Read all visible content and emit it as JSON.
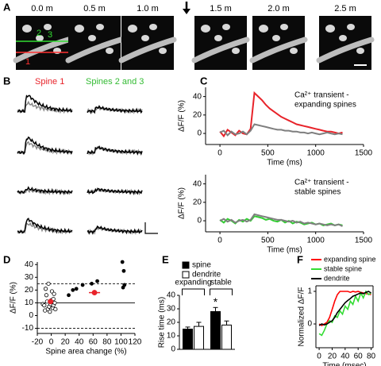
{
  "panel_labels": [
    "A",
    "B",
    "C",
    "D",
    "E",
    "F"
  ],
  "panel_a": {
    "times": [
      "0.0 m",
      "0.5 m",
      "1.0 m",
      "1.5 m",
      "2.0 m",
      "2.5 m"
    ],
    "spine_labels": [
      "1",
      "2",
      "3"
    ]
  },
  "panel_b": {
    "headers": [
      "Spine 1",
      "Spines 2 and 3"
    ]
  },
  "chart_data": [
    {
      "type": "line",
      "annotation": [
        "Ca²⁺ transient -",
        "expanding spines"
      ],
      "xlabel": "Time (ms)",
      "ylabel": "ΔF/F (%)",
      "x": [
        0,
        40,
        80,
        120,
        160,
        200,
        240,
        280,
        320,
        360,
        400,
        440,
        480,
        520,
        560,
        600,
        640,
        680,
        720,
        760,
        800,
        840,
        880,
        920,
        960,
        1000,
        1040,
        1080,
        1120,
        1160,
        1200,
        1240,
        1280
      ],
      "series": [
        {
          "color": "#e8232a",
          "values": [
            2,
            -3,
            4,
            1,
            -2,
            3,
            0,
            -1,
            5,
            44,
            40,
            36,
            31,
            27,
            24,
            21,
            18,
            16,
            14,
            12,
            10,
            9,
            8,
            7,
            6,
            5,
            4,
            3,
            2,
            2,
            1,
            0,
            1
          ]
        },
        {
          "color": "#7f7f7f",
          "values": [
            1,
            3,
            -2,
            2,
            -1,
            0,
            2,
            -1,
            3,
            10,
            9,
            8,
            7,
            6,
            5,
            4,
            4,
            3,
            3,
            2,
            2,
            1,
            1,
            0,
            1,
            0,
            -1,
            0,
            1,
            0,
            -1,
            0,
            -1
          ]
        }
      ],
      "xlim": [
        -150,
        1500
      ],
      "xticks": [
        0,
        500,
        1000,
        1500
      ],
      "ylim": [
        -12,
        50
      ],
      "yticks": [
        0,
        20,
        40
      ]
    },
    {
      "type": "line",
      "annotation": [
        "Ca²⁺ transient -",
        "stable spines"
      ],
      "xlabel": "Time (ms)",
      "ylabel": "ΔF/F (%)",
      "x": [
        0,
        40,
        80,
        120,
        160,
        200,
        240,
        280,
        320,
        360,
        400,
        440,
        480,
        520,
        560,
        600,
        640,
        680,
        720,
        760,
        800,
        840,
        880,
        920,
        960,
        1000,
        1040,
        1080,
        1120,
        1160,
        1200,
        1240,
        1280
      ],
      "series": [
        {
          "color": "#33cc33",
          "values": [
            1,
            -2,
            2,
            0,
            -3,
            1,
            -1,
            2,
            0,
            5,
            4,
            3,
            1,
            2,
            0,
            -1,
            1,
            -2,
            0,
            -3,
            -1,
            -2,
            -4,
            -3,
            -2,
            -4,
            -3,
            -5,
            -4,
            -3,
            -5,
            -4,
            -5
          ]
        },
        {
          "color": "#7f7f7f",
          "values": [
            0,
            2,
            -1,
            1,
            -2,
            0,
            1,
            -1,
            1,
            7,
            6,
            5,
            4,
            3,
            2,
            1,
            1,
            0,
            -1,
            0,
            -2,
            -1,
            -3,
            -2,
            -3,
            -4,
            -3,
            -4,
            -5,
            -4,
            -5,
            -4,
            -6
          ]
        }
      ],
      "xlim": [
        -150,
        1500
      ],
      "xticks": [
        0,
        500,
        1000,
        1500
      ],
      "ylim": [
        -12,
        50
      ],
      "yticks": [
        0,
        20,
        40
      ]
    },
    {
      "type": "scatter",
      "xlabel": "Spine area change (%)",
      "ylabel": "ΔF/F (%)",
      "series": [
        {
          "marker": "open",
          "color": "#000000",
          "x": [
            -12,
            -10,
            -8,
            -6,
            -5,
            -4,
            -3,
            -2,
            -1,
            0,
            1,
            2,
            3,
            4,
            5,
            6,
            -9,
            -7,
            3
          ],
          "values": [
            9,
            8,
            21,
            11,
            5,
            25,
            7,
            3,
            9,
            12,
            19,
            6,
            8,
            17,
            10,
            5,
            4,
            16,
            13
          ]
        },
        {
          "marker": "filled",
          "color": "#000000",
          "x": [
            25,
            31,
            36,
            45,
            58,
            66,
            102,
            104,
            105,
            103
          ],
          "values": [
            16,
            20,
            21,
            24,
            25,
            27,
            42,
            35,
            24,
            22
          ]
        },
        {
          "marker": "filled",
          "color": "#e8232a",
          "x": [
            -1,
            62
          ],
          "values": [
            11,
            18
          ],
          "xerr": [
            4,
            8
          ],
          "yerr": [
            2,
            2
          ]
        }
      ],
      "hlines": [
        {
          "value": 25,
          "style": "dashed"
        },
        {
          "value": 10,
          "style": "solid"
        },
        {
          "value": -10,
          "style": "dashed"
        }
      ],
      "xlim": [
        -20,
        120
      ],
      "xticks": [
        -20,
        0,
        20,
        40,
        60,
        80,
        100,
        120
      ],
      "ylim": [
        -14,
        42
      ],
      "yticks": [
        -10,
        0,
        10,
        20,
        30,
        40
      ]
    },
    {
      "type": "bar",
      "ylabel": "Rise time (ms)",
      "categories": [
        "expanding",
        "stable"
      ],
      "annotation": "*",
      "series": [
        {
          "name": "spine",
          "color": "#000000",
          "values": [
            15,
            28
          ],
          "errors": [
            1.5,
            3
          ]
        },
        {
          "name": "dendrite",
          "color": "#ffffff",
          "values": [
            17,
            18
          ],
          "errors": [
            3,
            3
          ]
        }
      ],
      "ylim": [
        0,
        40
      ],
      "yticks": [
        0,
        10,
        20,
        30,
        40
      ]
    },
    {
      "type": "line",
      "xlabel": "Time (msec)",
      "ylabel": "Normalized ΔF/F",
      "x": [
        0,
        4,
        8,
        12,
        16,
        20,
        24,
        28,
        32,
        36,
        40,
        44,
        48,
        52,
        56,
        60,
        64,
        68,
        72,
        76,
        80
      ],
      "series": [
        {
          "name": "expanding spine",
          "color": "#ff0000",
          "values": [
            0,
            -0.05,
            0,
            0.05,
            0.2,
            0.45,
            0.7,
            0.9,
            1,
            1,
            1,
            1,
            0.97,
            1,
            0.98,
            1,
            0.97,
            0.95,
            0.93,
            0.92,
            0.9
          ]
        },
        {
          "name": "stable spine",
          "color": "#33dd33",
          "values": [
            -0.3,
            -0.35,
            -0.2,
            0,
            0.1,
            0.05,
            0.25,
            0.2,
            0.4,
            0.3,
            0.55,
            0.45,
            0.7,
            0.6,
            0.85,
            0.7,
            0.95,
            0.8,
            1,
            0.9,
            0.95
          ]
        },
        {
          "name": "dendrite",
          "color": "#000000",
          "values": [
            -0.05,
            0,
            -0.03,
            0,
            0.05,
            0.1,
            0.2,
            0.35,
            0.45,
            0.55,
            0.65,
            0.72,
            0.78,
            0.85,
            0.88,
            0.92,
            0.95,
            0.93,
            0.97,
            1,
            0.95
          ]
        }
      ],
      "xlim": [
        -5,
        83
      ],
      "xticks": [
        0,
        20,
        40,
        60,
        80
      ],
      "ylim": [
        -0.73,
        1.17
      ],
      "yticks": [
        0,
        1
      ]
    }
  ]
}
